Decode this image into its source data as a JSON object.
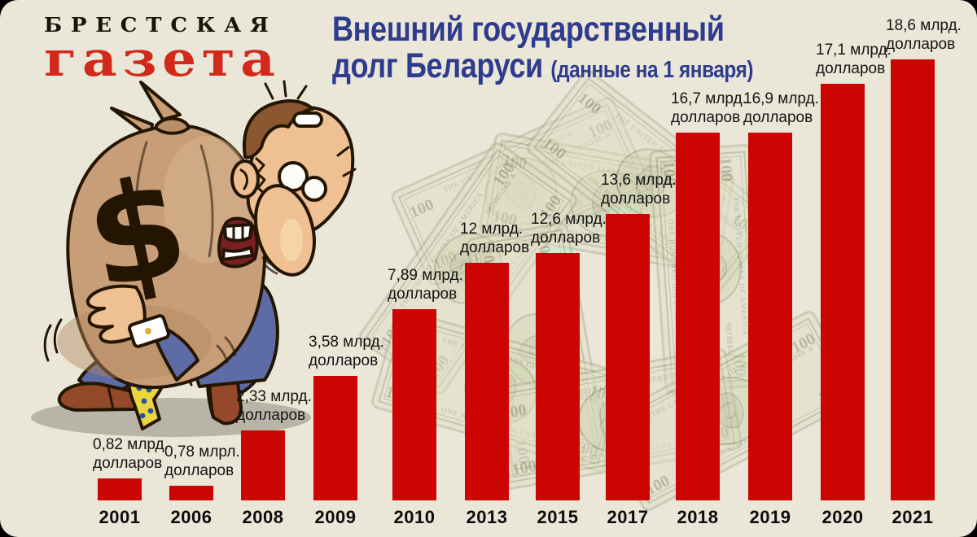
{
  "logo": {
    "line1": "БРЕСТСКАЯ",
    "line2": "газета"
  },
  "title": {
    "line1": "Внешний государственный",
    "line2": "долг Беларуси",
    "note": "(данные на 1 января)"
  },
  "chart_data": {
    "type": "bar",
    "title": "Внешний государственный долг Беларуси (данные на 1 января)",
    "unit": "млрд. долларов",
    "categories": [
      "2001",
      "2006",
      "2008",
      "2009",
      "2010",
      "2013",
      "2015",
      "2017",
      "2018",
      "2019",
      "2020",
      "2021"
    ],
    "values": [
      0.82,
      0.78,
      2.33,
      3.58,
      7.89,
      12,
      12.6,
      13.6,
      16.7,
      16.9,
      17.1,
      18.6
    ],
    "bar_labels": [
      [
        "0,82 млрд.",
        "долларов"
      ],
      [
        "0,78 млрл.",
        "долларов"
      ],
      [
        "2,33 млрд.",
        "долларов"
      ],
      [
        "3,58 млрд.",
        "долларов"
      ],
      [
        "7,89 млрд.",
        "долларов"
      ],
      [
        "12 млрд.",
        "долларов"
      ],
      [
        "12,6 млрд.",
        "долларов"
      ],
      [
        "13,6 млрд.",
        "долларов"
      ],
      [
        "16,7 млрд.",
        "долларов"
      ],
      [
        "16,9 млрд.",
        "долларов"
      ],
      [
        "17,1 млрд.",
        "долларов"
      ],
      [
        "18,6 млрд.",
        "долларов"
      ]
    ],
    "bar_color": "#cc0402",
    "ylim": [
      0,
      20
    ],
    "grid": false,
    "legend": false
  },
  "colors": {
    "background": "#eae7d9",
    "bar": "#cc0402",
    "title": "#2e3b8e",
    "logo_red": "#d2291b",
    "logo_black": "#1a130b",
    "text": "#141414",
    "bill_paper": "#e0dfc6",
    "bill_ink": "#8f9474",
    "bag": "#c79e78",
    "suit": "#5e6ca6",
    "tie": "#ead73c",
    "shoe": "#93492a",
    "skin": "#eec092"
  },
  "decorations": {
    "money_bag_symbol": "$",
    "bill": {
      "denomination": "100",
      "top_text": "THE UNITED STATES OF AMERICA",
      "bottom_text": "ONE HUNDRED DOLLARS",
      "serial": "987965348 A"
    }
  }
}
